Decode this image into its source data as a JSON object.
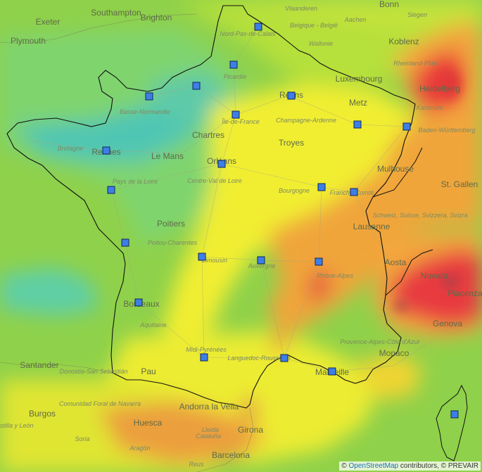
{
  "map": {
    "attribution": {
      "prefix": "©",
      "osm_link": "OpenStreetMap",
      "suffix": "contributors, © PREVAIR"
    },
    "labels_major": [
      "Southampton",
      "Exeter",
      "Brighton",
      "Plymouth",
      "Luxembourg",
      "Metz",
      "Heidelberg",
      "Rennes",
      "Le Mans",
      "Orléans",
      "Poitiers",
      "Bordeaux",
      "Santander",
      "Donostia-San Sebastián",
      "Pau",
      "Andorra la Vella",
      "Barcelona",
      "Marseille",
      "Monaco",
      "Genova",
      "Aosta",
      "Lausanne",
      "St. Gallen",
      "Mulhouse",
      "Troyes",
      "Chartres",
      "Koblenz",
      "Burgos",
      "Huesca",
      "Girona",
      "Reims",
      "Novara",
      "Piacenza",
      "Bonn"
    ],
    "labels_minor": [
      "Basse-Normandie",
      "Bretagne",
      "Pays de la Loire",
      "Centre-Val de Loire",
      "Poitou-Charentes",
      "Limousin",
      "Auvergne",
      "Aquitaine",
      "Midi-Pyrénées",
      "Languedoc-Roussillon",
      "Provence-Alpes-Côte d'Azur",
      "Bourgogne",
      "Franche-Comté",
      "Champagne-Ardenne",
      "Picardie",
      "Île-de-France",
      "Nord-Pas-de-Calais",
      "Rhône-Alpes",
      "Comunidad Foral de Navarra",
      "Cataluña",
      "Wallonie",
      "Vlaanderen",
      "Belgique - België",
      "Rheinland-Pfalz",
      "Baden-Württemberg",
      "Schweiz, Suisse, Svizzera, Svizra",
      "Karlsruhe",
      "Aachen",
      "Siegen",
      "Aragón",
      "Castilla y León",
      "Soria",
      "Lleida",
      "Reus"
    ]
  }
}
